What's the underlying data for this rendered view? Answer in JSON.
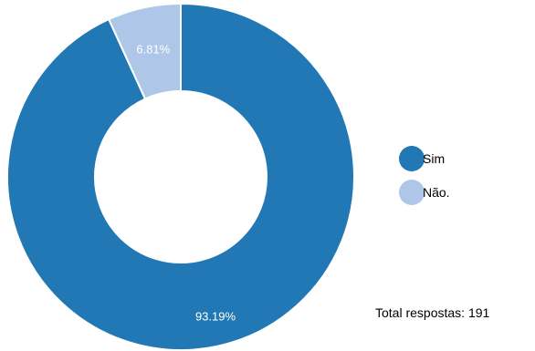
{
  "chart_data": {
    "type": "pie",
    "donut": true,
    "categories": [
      "Sim",
      "Não."
    ],
    "values": [
      93.19,
      6.81
    ],
    "labels": [
      "93.19%",
      "6.81%"
    ],
    "colors": [
      "#2178b4",
      "#aec7e8"
    ],
    "legend_position": "right",
    "legend": [
      "Sim",
      "Não."
    ]
  },
  "footer": {
    "total_text": "Total respostas: 191"
  }
}
